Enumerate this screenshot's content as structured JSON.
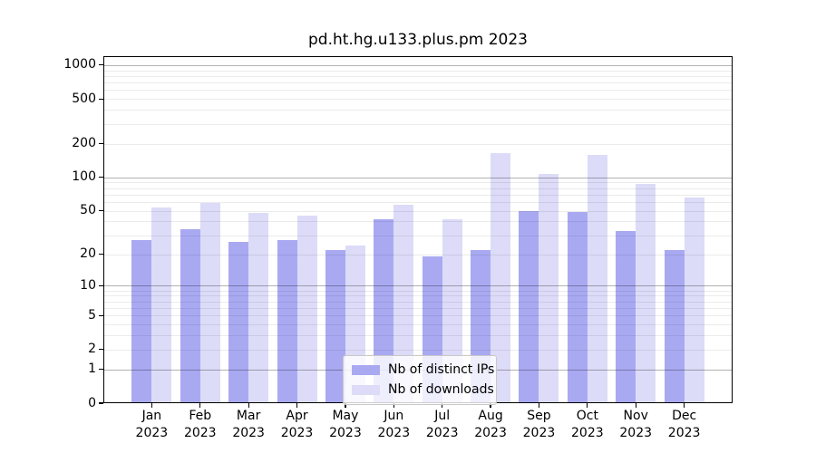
{
  "chart_data": {
    "type": "bar",
    "title": "pd.ht.hg.u133.plus.pm 2023",
    "categories": [
      "Jan",
      "Feb",
      "Mar",
      "Apr",
      "May",
      "Jun",
      "Jul",
      "Aug",
      "Sep",
      "Oct",
      "Nov",
      "Dec"
    ],
    "xtick_year_line": "2023",
    "series": [
      {
        "name": "Nb of distinct IPs",
        "color": "#a9a9f2",
        "values": [
          27,
          34,
          26,
          27,
          22,
          42,
          19,
          22,
          50,
          49,
          33,
          22
        ]
      },
      {
        "name": "Nb of downloads",
        "color": "#dcdcf8",
        "values": [
          54,
          59,
          48,
          45,
          24,
          57,
          42,
          165,
          107,
          158,
          88,
          66
        ]
      }
    ],
    "yscale": "log1p",
    "ylim": [
      0,
      1200
    ],
    "ytick_labels": [
      "0",
      "1",
      "2",
      "5",
      "10",
      "20",
      "50",
      "100",
      "200",
      "500",
      "1000"
    ],
    "yticks_major_grid": [
      1,
      10,
      100,
      1000
    ],
    "grid": "horizontal",
    "legend_position": "lower center"
  },
  "colors": {
    "background": "#ffffff",
    "spine": "#000000",
    "major_grid": "#b0b0b0",
    "minor_grid": "#e8e8e8",
    "text": "#000000",
    "legend_border": "#c9c9c9",
    "legend_background": "rgba(255,255,255,0.8)"
  }
}
